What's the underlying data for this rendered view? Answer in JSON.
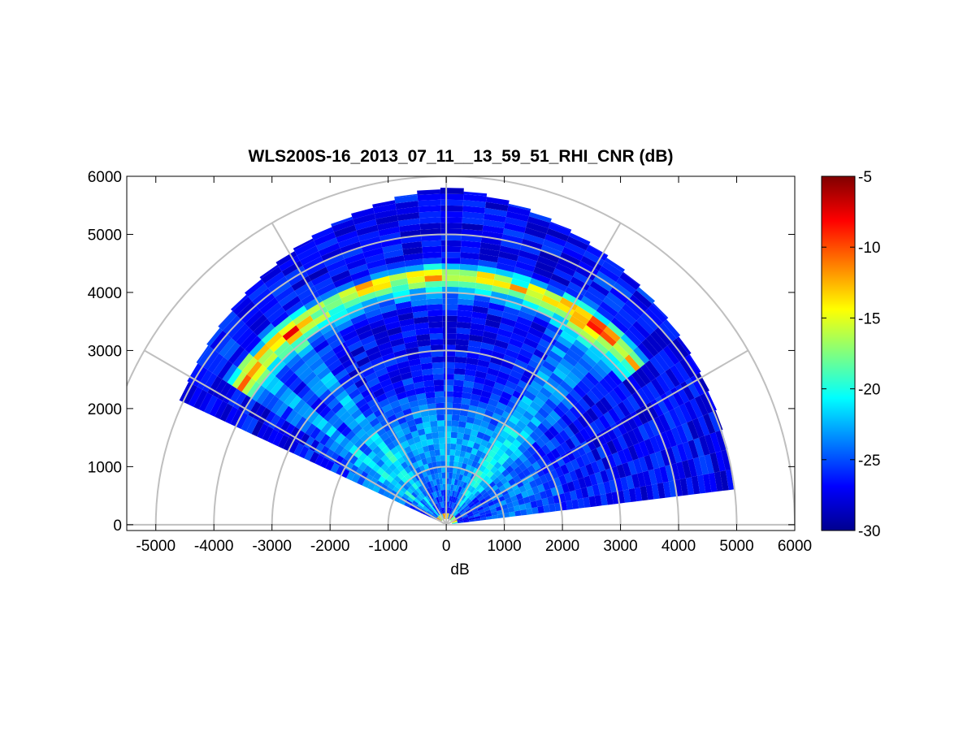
{
  "chart_data": {
    "type": "heatmap",
    "subtype": "polar-rhi-sector",
    "title": "WLS200S-16_2013_07_11__13_59_51_RHI_CNR (dB)",
    "xlabel": "dB",
    "ylabel": "",
    "xlim": [
      -5500,
      6000
    ],
    "ylim": [
      -100,
      6000
    ],
    "xticks": [
      "-5000",
      "-4000",
      "-3000",
      "-2000",
      "-1000",
      "0",
      "1000",
      "2000",
      "3000",
      "4000",
      "5000",
      "6000"
    ],
    "yticks": [
      "0",
      "1000",
      "2000",
      "3000",
      "4000",
      "5000",
      "6000"
    ],
    "polar_grid": {
      "ring_ranges": [
        1000,
        2000,
        3000,
        4000,
        5000,
        6000
      ],
      "spoke_angles_deg": [
        0,
        30,
        60,
        90,
        120,
        150,
        180
      ]
    },
    "scan": {
      "azimuth_range_deg": [
        7,
        153
      ],
      "max_range": 6000,
      "range_gate": 100,
      "beam_width_deg": 4
    },
    "features": {
      "cloud_base_range": 4300,
      "cloud_layer_peak_db": -5,
      "near_field_strong_range": 150
    },
    "colorbar": {
      "colormap": "jet",
      "clim": [
        -30,
        -5
      ],
      "ticks": [
        "-5",
        "-10",
        "-15",
        "-20",
        "-25",
        "-30"
      ]
    },
    "grid": true
  }
}
